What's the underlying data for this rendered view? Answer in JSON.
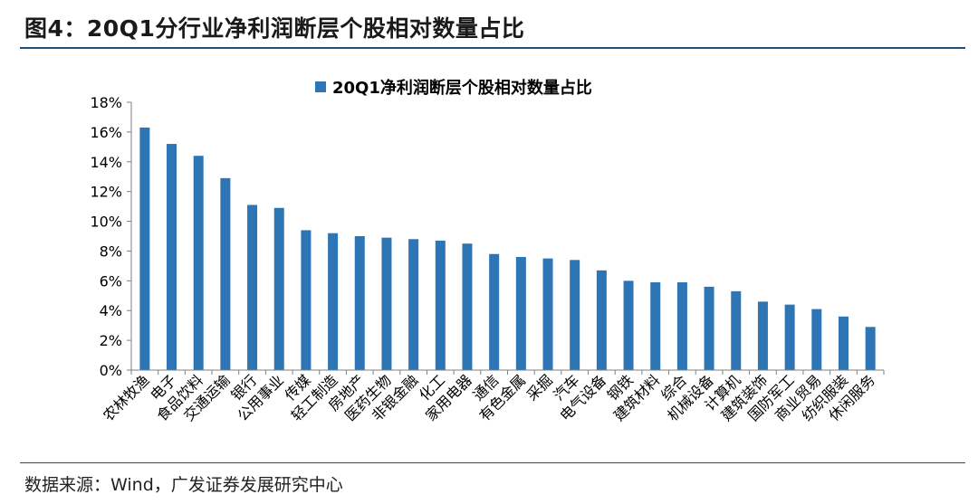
{
  "header": {
    "title": "图4：20Q1分行业净利润断层个股相对数量占比"
  },
  "footer": {
    "source": "数据来源：Wind，广发证券发展研究中心"
  },
  "colors": {
    "bar": "#2e75b6",
    "rule": "#1f4e79"
  },
  "chart_data": {
    "type": "bar",
    "title": "",
    "xlabel": "",
    "ylabel": "",
    "ylim": [
      0,
      18
    ],
    "y_ticks": [
      "0%",
      "2%",
      "4%",
      "6%",
      "8%",
      "10%",
      "12%",
      "14%",
      "16%",
      "18%"
    ],
    "grid": false,
    "legend_position": "top-center",
    "categories": [
      "农林牧渔",
      "电子",
      "食品饮料",
      "交通运输",
      "银行",
      "公用事业",
      "传媒",
      "轻工制造",
      "房地产",
      "医药生物",
      "非银金融",
      "化工",
      "家用电器",
      "通信",
      "有色金属",
      "采掘",
      "汽车",
      "电气设备",
      "钢铁",
      "建筑材料",
      "综合",
      "机械设备",
      "计算机",
      "建筑装饰",
      "国防军工",
      "商业贸易",
      "纺织服装",
      "休闲服务"
    ],
    "series": [
      {
        "name": "20Q1净利润断层个股相对数量占比",
        "values": [
          16.3,
          15.2,
          14.4,
          12.9,
          11.1,
          10.9,
          9.4,
          9.2,
          9.0,
          8.9,
          8.8,
          8.7,
          8.5,
          7.8,
          7.6,
          7.5,
          7.4,
          6.7,
          6.0,
          5.9,
          5.9,
          5.6,
          5.3,
          4.6,
          4.4,
          4.1,
          3.6,
          2.9
        ]
      }
    ]
  }
}
